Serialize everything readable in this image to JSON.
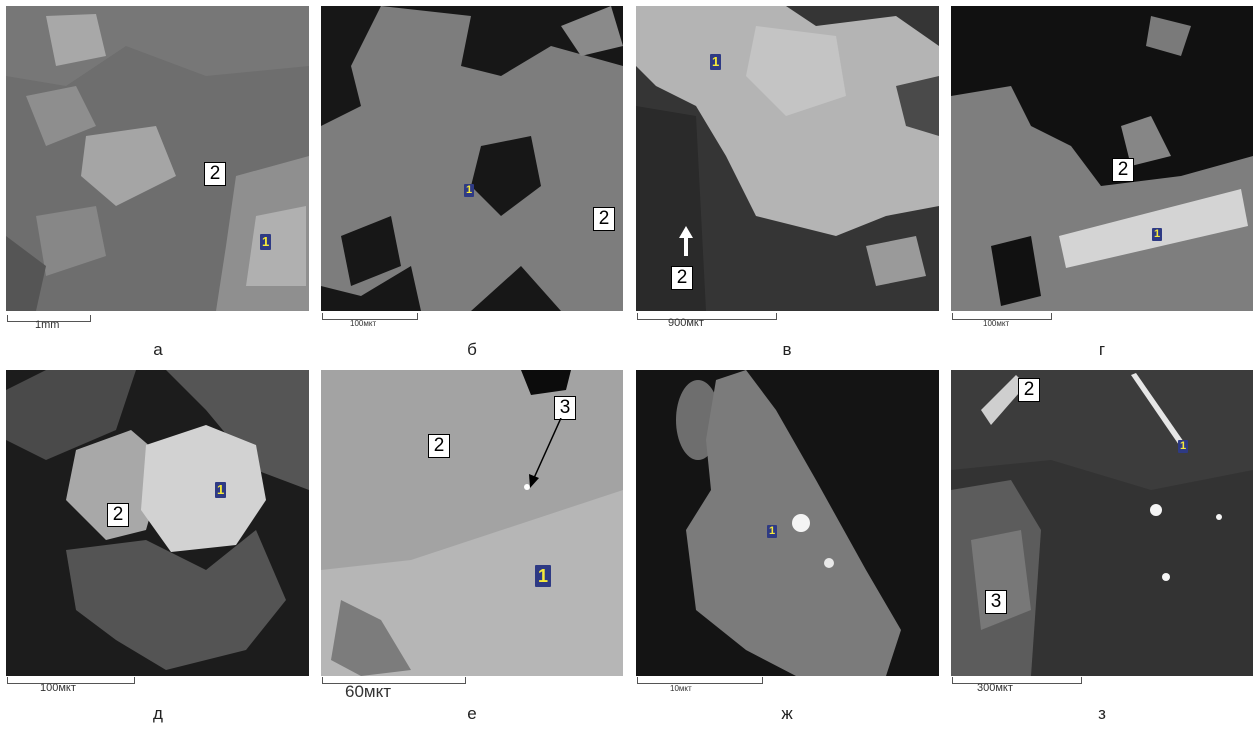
{
  "panels": [
    {
      "id": "a",
      "caption": "а",
      "scale": "1mm",
      "labels": [
        "2",
        "1"
      ]
    },
    {
      "id": "b",
      "caption": "б",
      "scale": "100мкт",
      "labels": [
        "1",
        "2"
      ]
    },
    {
      "id": "v",
      "caption": "в",
      "scale": "900мкт",
      "labels": [
        "1",
        "2"
      ]
    },
    {
      "id": "g",
      "caption": "г",
      "scale": "100мкт",
      "labels": [
        "2",
        "1"
      ]
    },
    {
      "id": "d",
      "caption": "д",
      "scale": "100мкт",
      "labels": [
        "1",
        "2"
      ]
    },
    {
      "id": "e",
      "caption": "е",
      "scale": "60мкт",
      "labels": [
        "2",
        "3",
        "1"
      ]
    },
    {
      "id": "zh",
      "caption": "ж",
      "scale": "10мкт",
      "labels": [
        "1"
      ]
    },
    {
      "id": "z",
      "caption": "з",
      "scale": "300мкт",
      "labels": [
        "2",
        "1",
        "3"
      ]
    }
  ]
}
